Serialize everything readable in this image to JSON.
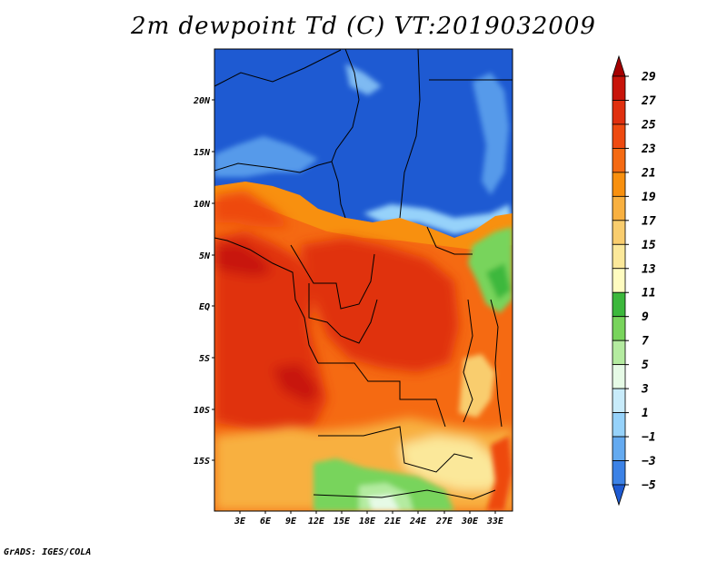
{
  "title": "2m dewpoint Td (C) VT:2019032009",
  "credit": "GrADS: IGES/COLA",
  "map": {
    "lat_labels": [
      "20N",
      "15N",
      "10N",
      "5N",
      "EQ",
      "5S",
      "10S",
      "15S"
    ],
    "lon_labels": [
      "3E",
      "6E",
      "9E",
      "12E",
      "15E",
      "18E",
      "21E",
      "24E",
      "27E",
      "30E",
      "33E"
    ]
  },
  "colorbar": {
    "labels": [
      "29",
      "27",
      "25",
      "23",
      "21",
      "19",
      "17",
      "15",
      "13",
      "11",
      "9",
      "7",
      "5",
      "3",
      "1",
      "−1",
      "−3",
      "−5"
    ],
    "colors": [
      "#a50000",
      "#c8140a",
      "#e0300f",
      "#ee4a10",
      "#f56a12",
      "#f8900f",
      "#f8b040",
      "#f9cd6e",
      "#fbe89a",
      "#fffcc0",
      "#3cb83c",
      "#78d45c",
      "#b4eba0",
      "#e6fae6",
      "#c8ebfa",
      "#96d2fa",
      "#64aaf0",
      "#3c82e6",
      "#1e5ad2"
    ]
  }
}
